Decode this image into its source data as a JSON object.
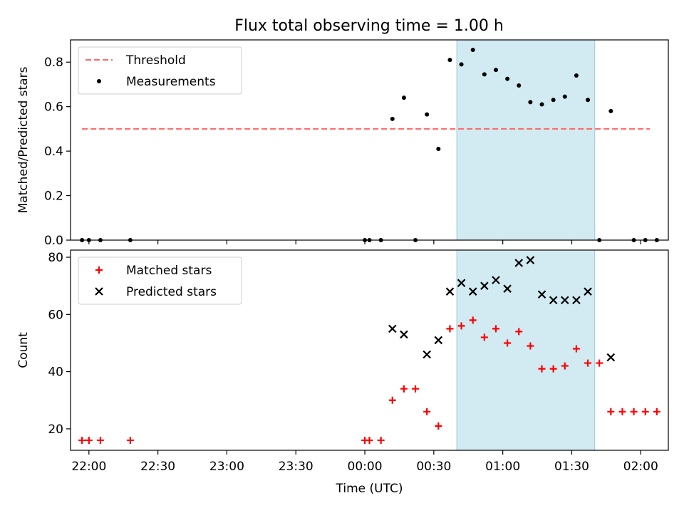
{
  "title": "Flux total observing time = 1.00 h",
  "chart_data": [
    {
      "type": "scatter",
      "panel": "top",
      "title": "Flux total observing time = 1.00 h",
      "xlabel": "",
      "ylabel": "Matched/Predicted stars",
      "ylim": [
        0,
        0.9
      ],
      "yticks": [
        0.0,
        0.2,
        0.4,
        0.6,
        0.8
      ],
      "ytick_labels": [
        "0.0",
        "0.2",
        "0.4",
        "0.6",
        "0.8"
      ],
      "legend_position": "upper-left",
      "grid": false,
      "highlight_span": {
        "start": "00:40",
        "end": "01:40",
        "color": "#add8e6"
      },
      "threshold": {
        "name": "Threshold",
        "value": 0.5,
        "x_start": "21:57",
        "x_end": "02:04",
        "color": "#ff6666",
        "style": "dashed"
      },
      "series": [
        {
          "name": "Measurements",
          "color": "#000000",
          "marker": "dot",
          "x": [
            "21:57",
            "22:00",
            "22:05",
            "22:18",
            "00:00",
            "00:02",
            "00:07",
            "00:12",
            "00:17",
            "00:22",
            "00:27",
            "00:32",
            "00:37",
            "00:42",
            "00:47",
            "00:52",
            "00:57",
            "01:02",
            "01:07",
            "01:12",
            "01:17",
            "01:22",
            "01:27",
            "01:32",
            "01:37",
            "01:42",
            "01:47",
            "01:57",
            "02:02",
            "02:07"
          ],
          "y": [
            0,
            0,
            0,
            0,
            0,
            0,
            0,
            0.545,
            0.64,
            0,
            0.565,
            0.41,
            0.81,
            0.79,
            0.855,
            0.745,
            0.765,
            0.725,
            0.695,
            0.62,
            0.61,
            0.63,
            0.645,
            0.74,
            0.63,
            0,
            0.58,
            0,
            0,
            0
          ]
        }
      ]
    },
    {
      "type": "scatter",
      "panel": "bottom",
      "xlabel": "Time (UTC)",
      "ylabel": "Count",
      "ylim": [
        12.5,
        82.5
      ],
      "yticks": [
        20,
        40,
        60,
        80
      ],
      "ytick_labels": [
        "20",
        "40",
        "60",
        "80"
      ],
      "xticks": [
        "22:00",
        "22:30",
        "23:00",
        "23:30",
        "00:00",
        "00:30",
        "01:00",
        "01:30",
        "02:00"
      ],
      "xlim": [
        "21:52",
        "02:12"
      ],
      "legend_position": "upper-left",
      "grid": false,
      "highlight_span": {
        "start": "00:40",
        "end": "01:40",
        "color": "#add8e6"
      },
      "series": [
        {
          "name": "Matched stars",
          "color": "#ff0000",
          "marker": "plus",
          "x": [
            "21:57",
            "22:00",
            "22:05",
            "22:18",
            "00:00",
            "00:02",
            "00:07",
            "00:12",
            "00:17",
            "00:22",
            "00:27",
            "00:32",
            "00:37",
            "00:42",
            "00:47",
            "00:52",
            "00:57",
            "01:02",
            "01:07",
            "01:12",
            "01:17",
            "01:22",
            "01:27",
            "01:32",
            "01:37",
            "01:42",
            "01:47",
            "01:52",
            "01:57",
            "02:02",
            "02:07"
          ],
          "y": [
            16,
            16,
            16,
            16,
            16,
            16,
            16,
            30,
            34,
            34,
            26,
            21,
            55,
            56,
            58,
            52,
            55,
            50,
            54,
            49,
            41,
            41,
            42,
            48,
            43,
            43,
            26,
            26,
            26,
            26,
            26
          ]
        },
        {
          "name": "Predicted stars",
          "color": "#000000",
          "marker": "x",
          "x": [
            "00:12",
            "00:17",
            "00:27",
            "00:32",
            "00:37",
            "00:42",
            "00:47",
            "00:52",
            "00:57",
            "01:02",
            "01:07",
            "01:12",
            "01:17",
            "01:22",
            "01:27",
            "01:32",
            "01:37",
            "01:47"
          ],
          "y": [
            55,
            53,
            46,
            51,
            68,
            71,
            68,
            70,
            72,
            69,
            78,
            79,
            67,
            65,
            65,
            65,
            68,
            45
          ]
        }
      ]
    }
  ]
}
